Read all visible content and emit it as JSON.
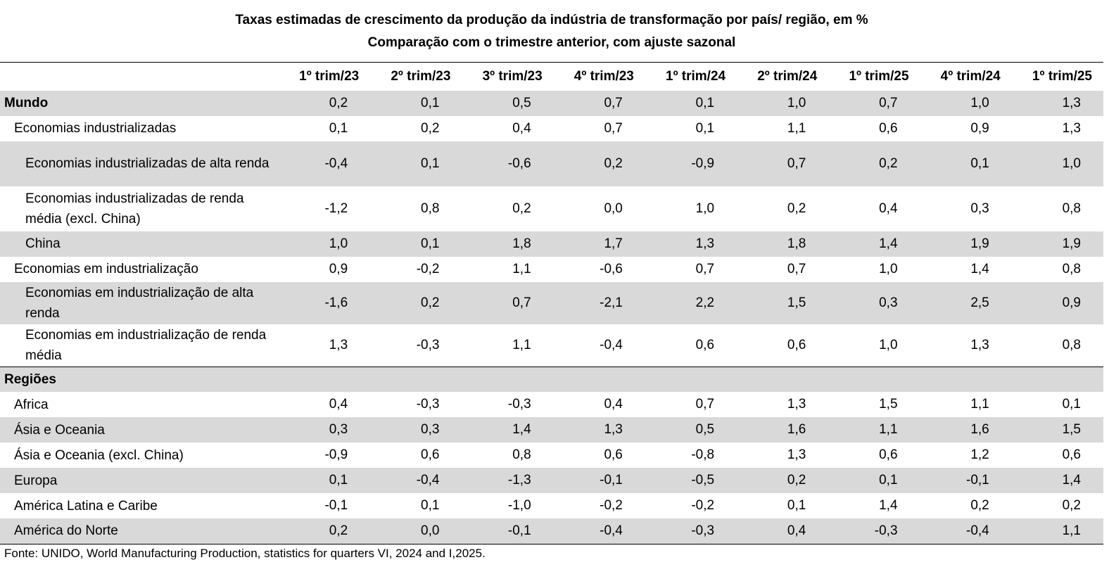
{
  "title_line1": "Taxas estimadas de crescimento da produção da indústria de transformação por país/ região, em %",
  "title_line2": "Comparação com o trimestre anterior, com ajuste sazonal",
  "columns": [
    "1º trim/23",
    "2º trim/23",
    "3º trim/23",
    "4º trim/23",
    "1º trim/24",
    "2º trim/24",
    "1º trim/25",
    "4º trim/24",
    "1º trim/25"
  ],
  "rows": [
    {
      "label": "Mundo",
      "level": 0,
      "shade": true,
      "values": [
        "0,2",
        "0,1",
        "0,5",
        "0,7",
        "0,1",
        "1,0",
        "0,7",
        "1,0",
        "1,3"
      ]
    },
    {
      "label": "Economias industrializadas",
      "level": 1,
      "shade": false,
      "values": [
        "0,1",
        "0,2",
        "0,4",
        "0,7",
        "0,1",
        "1,1",
        "0,6",
        "0,9",
        "1,3"
      ]
    },
    {
      "label": "Economias industrializadas de alta renda",
      "level": 2,
      "shade": true,
      "values": [
        "-0,4",
        "0,1",
        "-0,6",
        "0,2",
        "-0,9",
        "0,7",
        "0,2",
        "0,1",
        "1,0"
      ]
    },
    {
      "label": "Economias industrializadas de renda média (excl. China)",
      "level": 2,
      "shade": false,
      "values": [
        "-1,2",
        "0,8",
        "0,2",
        "0,0",
        "1,0",
        "0,2",
        "0,4",
        "0,3",
        "0,8"
      ]
    },
    {
      "label": "China",
      "level": 2,
      "shade": true,
      "values": [
        "1,0",
        "0,1",
        "1,8",
        "1,7",
        "1,3",
        "1,8",
        "1,4",
        "1,9",
        "1,9"
      ]
    },
    {
      "label": "Economias em industrialização",
      "level": 1,
      "shade": false,
      "values": [
        "0,9",
        "-0,2",
        "1,1",
        "-0,6",
        "0,7",
        "0,7",
        "1,0",
        "1,4",
        "0,8"
      ]
    },
    {
      "label": "Economias em industrialização de alta renda",
      "level": 2,
      "shade": true,
      "values": [
        "-1,6",
        "0,2",
        "0,7",
        "-2,1",
        "2,2",
        "1,5",
        "0,3",
        "2,5",
        "0,9"
      ]
    },
    {
      "label": "Economias em industrialização de renda média",
      "level": 2,
      "shade": false,
      "values": [
        "1,3",
        "-0,3",
        "1,1",
        "-0,4",
        "0,6",
        "0,6",
        "1,0",
        "1,3",
        "0,8"
      ]
    },
    {
      "label": "Regiões",
      "level": 0,
      "shade": true,
      "separator": true,
      "values": [
        "",
        "",
        "",
        "",
        "",
        "",
        "",
        "",
        ""
      ]
    },
    {
      "label": "Africa",
      "level": 1,
      "shade": false,
      "values": [
        "0,4",
        "-0,3",
        "-0,3",
        "0,4",
        "0,7",
        "1,3",
        "1,5",
        "1,1",
        "0,1"
      ]
    },
    {
      "label": "Ásia e Oceania",
      "level": 1,
      "shade": true,
      "values": [
        "0,3",
        "0,3",
        "1,4",
        "1,3",
        "0,5",
        "1,6",
        "1,1",
        "1,6",
        "1,5"
      ]
    },
    {
      "label": "Ásia e Oceania (excl. China)",
      "level": 1,
      "shade": false,
      "values": [
        "-0,9",
        "0,6",
        "0,8",
        "0,6",
        "-0,8",
        "1,3",
        "0,6",
        "1,2",
        "0,6"
      ]
    },
    {
      "label": "Europa",
      "level": 1,
      "shade": true,
      "values": [
        "0,1",
        "-0,4",
        "-1,3",
        "-0,1",
        "-0,5",
        "0,2",
        "0,1",
        "-0,1",
        "1,4"
      ]
    },
    {
      "label": "América Latina e Caribe",
      "level": 1,
      "shade": false,
      "values": [
        "-0,1",
        "0,1",
        "-1,0",
        "-0,2",
        "-0,2",
        "0,1",
        "1,4",
        "0,2",
        "0,2"
      ]
    },
    {
      "label": "América do Norte",
      "level": 1,
      "shade": true,
      "values": [
        "0,2",
        "0,0",
        "-0,1",
        "-0,4",
        "-0,3",
        "0,4",
        "-0,3",
        "-0,4",
        "1,1"
      ]
    }
  ],
  "source": "Fonte: UNIDO, World Manufacturing Production, statistics for quarters VI, 2024 and I,2025."
}
